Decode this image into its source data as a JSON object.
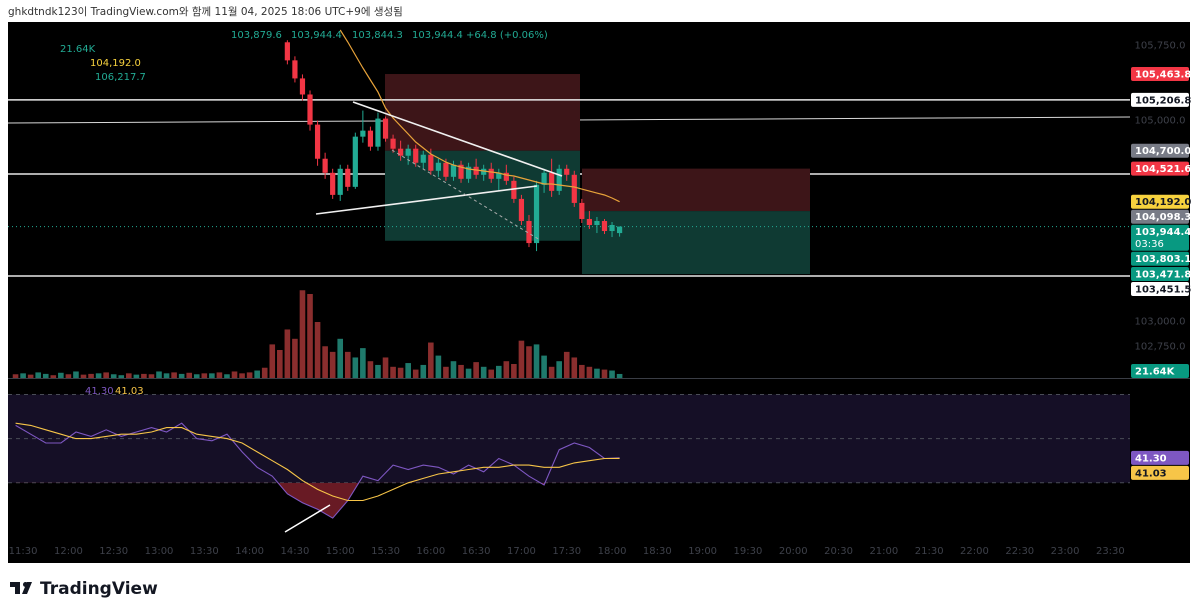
{
  "header": {
    "caption": "ghkdtndk123이 TradingView.com와 함께 11월 04, 2025 18:06 UTC+9에 생성됨",
    "brand": "TradingView"
  },
  "chart_data": [
    {
      "type": "candlestick",
      "x": [
        "14:25",
        "14:30",
        "14:35",
        "14:40",
        "14:45",
        "14:50",
        "14:55",
        "15:00",
        "15:05",
        "15:10",
        "15:15",
        "15:20",
        "15:25",
        "15:30",
        "15:35",
        "15:40",
        "15:45",
        "15:50",
        "15:55",
        "16:00",
        "16:05",
        "16:10",
        "16:15",
        "16:20",
        "16:25",
        "16:30",
        "16:35",
        "16:40",
        "16:45",
        "16:50",
        "16:55",
        "17:00",
        "17:05",
        "17:10",
        "17:15",
        "17:20",
        "17:25",
        "17:30",
        "17:35",
        "17:40",
        "17:45",
        "17:50",
        "17:55",
        "18:00",
        "18:05"
      ],
      "open": [
        105780,
        105600,
        105420,
        105260,
        104960,
        104620,
        104480,
        104260,
        104520,
        104340,
        104840,
        104900,
        104740,
        105020,
        104820,
        104720,
        104650,
        104720,
        104580,
        104660,
        104500,
        104580,
        104440,
        104560,
        104420,
        104540,
        104460,
        104520,
        104420,
        104480,
        104400,
        104220,
        104000,
        103780,
        104360,
        104480,
        104300,
        104520,
        104460,
        104180,
        104020,
        103960,
        104000,
        103900,
        103879.6
      ],
      "high": [
        105800,
        105640,
        105460,
        105300,
        105000,
        104680,
        104520,
        104560,
        104560,
        104880,
        105100,
        104940,
        105080,
        105040,
        104860,
        104800,
        104760,
        104760,
        104700,
        104720,
        104620,
        104620,
        104600,
        104600,
        104580,
        104620,
        104560,
        104580,
        104520,
        104560,
        104440,
        104260,
        104060,
        104400,
        104520,
        104620,
        104560,
        104560,
        104500,
        104220,
        104100,
        104040,
        104020,
        103990,
        103944.4
      ],
      "low": [
        105560,
        105380,
        105200,
        104900,
        104550,
        104420,
        104220,
        104200,
        104300,
        104320,
        104780,
        104700,
        104700,
        104790,
        104680,
        104600,
        104560,
        104540,
        104520,
        104460,
        104440,
        104400,
        104400,
        104380,
        104380,
        104420,
        104400,
        104380,
        104300,
        104360,
        104180,
        103960,
        103740,
        103700,
        104280,
        104240,
        104260,
        104400,
        104140,
        103980,
        103920,
        103880,
        103870,
        103840,
        103844.3
      ],
      "close": [
        105600,
        105420,
        105260,
        104960,
        104620,
        104480,
        104260,
        104520,
        104340,
        104840,
        104900,
        104740,
        105020,
        104820,
        104720,
        104650,
        104720,
        104580,
        104660,
        104500,
        104580,
        104440,
        104560,
        104420,
        104540,
        104460,
        104520,
        104420,
        104480,
        104400,
        104220,
        104000,
        103780,
        104360,
        104480,
        104300,
        104520,
        104460,
        104180,
        104020,
        103960,
        104000,
        103900,
        103960,
        103944.4
      ],
      "up_color": "#22ab94",
      "down_color": "#f23645",
      "ma": {
        "color": "#e8a33a",
        "values": [
          null,
          null,
          null,
          null,
          null,
          null,
          null,
          105903,
          105783,
          105653,
          105524,
          105404,
          105284,
          105125,
          105026,
          104946,
          104866,
          104787,
          104727,
          104667,
          104627,
          104587,
          104557,
          104537,
          104518,
          104508,
          104498,
          104488,
          104478,
          104458,
          104448,
          104428,
          104408,
          104388,
          104368,
          104368,
          104358,
          104348,
          104338,
          104318,
          104298,
          104278,
          104259,
          104229,
          104192.0
        ]
      },
      "xlim": [
        "11:20",
        "23:43"
      ],
      "xticks": [
        "11:30",
        "12:00",
        "12:30",
        "13:00",
        "13:30",
        "14:00",
        "14:30",
        "15:00",
        "15:30",
        "16:00",
        "16:30",
        "17:00",
        "17:30",
        "18:00",
        "18:30",
        "19:00",
        "19:30",
        "20:00",
        "20:30",
        "21:00",
        "21:30",
        "22:00",
        "22:30",
        "23:00",
        "23:30"
      ],
      "ylim": [
        102436,
        105982
      ],
      "yticks": [
        {
          "value": 102750,
          "label": "102,750.0"
        },
        {
          "value": 103000,
          "label": "103,000.0"
        },
        {
          "value": 105000,
          "label": "105,000.0"
        },
        {
          "value": 105750,
          "label": "105,750.0"
        }
      ],
      "legend": {
        "ohlc": [
          "103,879.6",
          "103,944.4",
          "103,844.3",
          "103,944.4"
        ],
        "change": "+64.8 (+0.06%)",
        "ma2": "106,217.7"
      },
      "price_labels": [
        {
          "value": 105463.8,
          "label": "105,463.8",
          "bg": "#f23645",
          "fg": "#ffffff"
        },
        {
          "value": 105206.8,
          "label": "105,206.8",
          "bg": "#ffffff",
          "fg": "#131722"
        },
        {
          "value": 104700.0,
          "label": "104,700.0",
          "bg": "#787b86",
          "fg": "#ffffff"
        },
        {
          "value": 104521.6,
          "label": "104,521.6",
          "bg": "#f23645",
          "fg": "#ffffff"
        },
        {
          "value": 104192.0,
          "label": "104,192.0",
          "bg": "#f7d23e",
          "fg": "#131722"
        },
        {
          "value": 104098.3,
          "label": "104,098.3",
          "bg": "#787b86",
          "fg": "#ffffff"
        },
        {
          "value": 103944.4,
          "label": "103,944.4",
          "bg": "#089981",
          "fg": "#ffffff",
          "countdown": "03:36"
        },
        {
          "value": 103803.1,
          "label": "103,803.1",
          "bg": "#089981",
          "fg": "#ffffff"
        },
        {
          "value": 103471.8,
          "label": "103,471.8",
          "bg": "#089981",
          "fg": "#ffffff"
        },
        {
          "value": 103451.5,
          "label": "103,451.5",
          "bg": "#ffffff",
          "fg": "#131722"
        }
      ]
    },
    {
      "type": "bar",
      "x": [
        "11:25",
        "11:30",
        "11:35",
        "11:40",
        "11:45",
        "11:50",
        "11:55",
        "12:00",
        "12:05",
        "12:10",
        "12:15",
        "12:20",
        "12:25",
        "12:30",
        "12:35",
        "12:40",
        "12:45",
        "12:50",
        "12:55",
        "13:00",
        "13:05",
        "13:10",
        "13:15",
        "13:20",
        "13:25",
        "13:30",
        "13:35",
        "13:40",
        "13:45",
        "13:50",
        "13:55",
        "14:00",
        "14:05",
        "14:10",
        "14:15",
        "14:20",
        "14:25",
        "14:30",
        "14:35",
        "14:40",
        "14:45",
        "14:50",
        "14:55",
        "15:00",
        "15:05",
        "15:10",
        "15:15",
        "15:20",
        "15:25",
        "15:30",
        "15:35",
        "15:40",
        "15:45",
        "15:50",
        "15:55",
        "16:00",
        "16:05",
        "16:10",
        "16:15",
        "16:20",
        "16:25",
        "16:30",
        "16:35",
        "16:40",
        "16:45",
        "16:50",
        "16:55",
        "17:00",
        "17:05",
        "17:10",
        "17:15",
        "17:20",
        "17:25",
        "17:30",
        "17:35",
        "17:40",
        "17:45",
        "17:50",
        "17:55",
        "18:00",
        "18:05"
      ],
      "values": [
        20000,
        25000,
        18000,
        30000,
        22000,
        15000,
        28000,
        20000,
        35000,
        18000,
        22000,
        25000,
        30000,
        20000,
        15000,
        25000,
        18000,
        22000,
        20000,
        35000,
        25000,
        30000,
        22000,
        28000,
        20000,
        25000,
        25000,
        30000,
        20000,
        35000,
        25000,
        30000,
        40000,
        55000,
        180000,
        150000,
        260000,
        210000,
        470000,
        450000,
        300000,
        170000,
        140000,
        210000,
        140000,
        110000,
        160000,
        90000,
        70000,
        110000,
        60000,
        55000,
        80000,
        45000,
        70000,
        190000,
        120000,
        60000,
        90000,
        70000,
        50000,
        85000,
        60000,
        45000,
        65000,
        90000,
        75000,
        200000,
        170000,
        180000,
        120000,
        60000,
        90000,
        140000,
        110000,
        70000,
        60000,
        50000,
        45000,
        40000,
        21640
      ],
      "colors": [
        "#8a2e2e",
        "#1f7a6c",
        "#8a2e2e",
        "#1f7a6c",
        "#1f7a6c",
        "#8a2e2e",
        "#1f7a6c",
        "#8a2e2e",
        "#1f7a6c",
        "#8a2e2e",
        "#8a2e2e",
        "#1f7a6c",
        "#8a2e2e",
        "#1f7a6c",
        "#1f7a6c",
        "#8a2e2e",
        "#1f7a6c",
        "#8a2e2e",
        "#8a2e2e",
        "#1f7a6c",
        "#1f7a6c",
        "#8a2e2e",
        "#1f7a6c",
        "#8a2e2e",
        "#1f7a6c",
        "#8a2e2e",
        "#1f7a6c",
        "#8a2e2e",
        "#1f7a6c",
        "#8a2e2e",
        "#8a2e2e",
        "#8a2e2e",
        "#1f7a6c",
        "#8a2e2e",
        "#8a2e2e",
        "#8a2e2e",
        "#8a2e2e",
        "#8a2e2e",
        "#8a2e2e",
        "#8a2e2e",
        "#8a2e2e",
        "#8a2e2e",
        "#8a2e2e",
        "#1f7a6c",
        "#8a2e2e",
        "#1f7a6c",
        "#1f7a6c",
        "#8a2e2e",
        "#1f7a6c",
        "#8a2e2e",
        "#8a2e2e",
        "#8a2e2e",
        "#1f7a6c",
        "#8a2e2e",
        "#1f7a6c",
        "#8a2e2e",
        "#1f7a6c",
        "#8a2e2e",
        "#1f7a6c",
        "#8a2e2e",
        "#1f7a6c",
        "#8a2e2e",
        "#1f7a6c",
        "#8a2e2e",
        "#1f7a6c",
        "#8a2e2e",
        "#8a2e2e",
        "#8a2e2e",
        "#8a2e2e",
        "#1f7a6c",
        "#1f7a6c",
        "#8a2e2e",
        "#1f7a6c",
        "#8a2e2e",
        "#8a2e2e",
        "#8a2e2e",
        "#8a2e2e",
        "#1f7a6c",
        "#8a2e2e",
        "#1f7a6c",
        "#1f7a6c"
      ],
      "ylim": [
        0,
        600000
      ],
      "last_label": "21.64K",
      "badge_color": "#089981"
    },
    {
      "type": "line",
      "x": [
        "11:25",
        "11:35",
        "11:45",
        "11:55",
        "12:05",
        "12:15",
        "12:25",
        "12:35",
        "12:45",
        "12:55",
        "13:05",
        "13:15",
        "13:25",
        "13:35",
        "13:45",
        "13:55",
        "14:05",
        "14:15",
        "14:25",
        "14:35",
        "14:45",
        "14:55",
        "15:05",
        "15:15",
        "15:25",
        "15:35",
        "15:45",
        "15:55",
        "16:05",
        "16:15",
        "16:25",
        "16:35",
        "16:45",
        "16:55",
        "17:05",
        "17:15",
        "17:25",
        "17:35",
        "17:45",
        "17:55",
        "18:05"
      ],
      "series": [
        {
          "color": "#7e57c2",
          "last_label": "41.30",
          "values": [
            56,
            52,
            48,
            48,
            53,
            51,
            54,
            51,
            53,
            55,
            53,
            57,
            50,
            49,
            52,
            44,
            37,
            33,
            25,
            21,
            18,
            14,
            22,
            33,
            31,
            38,
            36,
            38,
            37,
            34,
            38,
            35,
            41,
            38,
            33,
            29,
            45,
            48,
            46,
            41,
            41.3
          ]
        },
        {
          "color": "#f7c548",
          "last_label": "41.03",
          "values": [
            57,
            56,
            54,
            52,
            50,
            50,
            51,
            52,
            52,
            53,
            55,
            55,
            52,
            51,
            50,
            48,
            44,
            40,
            36,
            31,
            27,
            24,
            22,
            22,
            24,
            27,
            30,
            32,
            34,
            35,
            36,
            37,
            37,
            38,
            38,
            37,
            37,
            39,
            40,
            41,
            41.03
          ]
        }
      ],
      "ylim": [
        5,
        77
      ],
      "bands": [
        70,
        50,
        30
      ]
    }
  ]
}
